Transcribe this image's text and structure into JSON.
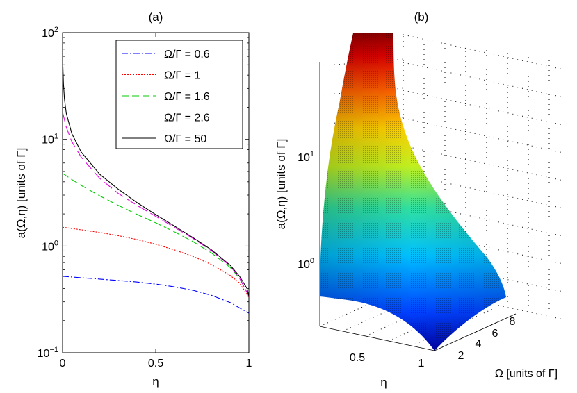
{
  "chart_data": [
    {
      "type": "line",
      "title": "(a)",
      "xlabel": "η",
      "ylabel": "a(Ω,η) [units of Γ]",
      "xlim": [
        0,
        1
      ],
      "ylim": [
        0.1,
        100
      ],
      "yscale": "log",
      "xticks": [
        0,
        0.5,
        1
      ],
      "xtick_labels": [
        "0",
        "0.5",
        "1"
      ],
      "yticks": [
        0.1,
        1,
        10,
        100
      ],
      "ytick_labels": [
        {
          "base": "10",
          "exp": "−1"
        },
        {
          "base": "10",
          "exp": "0"
        },
        {
          "base": "10",
          "exp": "1"
        },
        {
          "base": "10",
          "exp": "2"
        }
      ],
      "legend_position": "top-right",
      "series": [
        {
          "name": "Ω/Γ = 0.6",
          "color": "#0000ff",
          "dash": "dash-dot",
          "x": [
            0,
            0.1,
            0.2,
            0.3,
            0.4,
            0.5,
            0.6,
            0.7,
            0.8,
            0.9,
            1.0
          ],
          "y": [
            0.52,
            0.505,
            0.49,
            0.475,
            0.46,
            0.44,
            0.415,
            0.385,
            0.345,
            0.295,
            0.235
          ]
        },
        {
          "name": "Ω/Γ = 1",
          "color": "#ff0000",
          "dash": "dotted",
          "x": [
            0,
            0.1,
            0.2,
            0.3,
            0.4,
            0.5,
            0.6,
            0.7,
            0.8,
            0.9,
            0.95,
            1.0
          ],
          "y": [
            1.5,
            1.42,
            1.34,
            1.25,
            1.15,
            1.04,
            0.92,
            0.8,
            0.67,
            0.53,
            0.45,
            0.33
          ]
        },
        {
          "name": "Ω/Γ = 1.6",
          "color": "#00cc00",
          "dash": "dashed",
          "x": [
            0,
            0.05,
            0.1,
            0.2,
            0.3,
            0.4,
            0.5,
            0.6,
            0.7,
            0.8,
            0.9,
            0.95,
            1.0
          ],
          "y": [
            4.8,
            4.2,
            3.7,
            2.95,
            2.4,
            1.98,
            1.65,
            1.36,
            1.1,
            0.86,
            0.63,
            0.5,
            0.34
          ]
        },
        {
          "name": "Ω/Γ = 2.6",
          "color": "#e000e0",
          "dash": "long-dashed",
          "x": [
            0,
            0.02,
            0.05,
            0.1,
            0.2,
            0.3,
            0.4,
            0.5,
            0.6,
            0.7,
            0.8,
            0.9,
            0.95,
            1.0
          ],
          "y": [
            18,
            13,
            9.5,
            6.8,
            4.3,
            3.1,
            2.4,
            1.9,
            1.5,
            1.18,
            0.9,
            0.65,
            0.5,
            0.34
          ]
        },
        {
          "name": "Ω/Γ = 50",
          "color": "#000000",
          "dash": "solid",
          "x": [
            0,
            0.005,
            0.01,
            0.02,
            0.05,
            0.1,
            0.2,
            0.3,
            0.4,
            0.5,
            0.6,
            0.7,
            0.8,
            0.9,
            0.95,
            0.99,
            1.0
          ],
          "y": [
            60,
            33,
            24,
            17.5,
            11.3,
            7.6,
            4.7,
            3.4,
            2.55,
            1.97,
            1.54,
            1.2,
            0.92,
            0.66,
            0.52,
            0.4,
            0.34
          ]
        }
      ]
    },
    {
      "type": "surface3d",
      "title": "(b)",
      "xlabel": "η",
      "ylabel": "Ω [units of Γ]",
      "zlabel": "a(Ω,η) [units of Γ]",
      "zscale": "log",
      "xticks": [
        0.5,
        1
      ],
      "xtick_labels": [
        "0.5",
        "1"
      ],
      "yticks": [
        2,
        4,
        6,
        8
      ],
      "ytick_labels": [
        "2",
        "4",
        "6",
        "8"
      ],
      "zticks": [
        1,
        10
      ],
      "ztick_labels": [
        {
          "base": "10",
          "exp": "0"
        },
        {
          "base": "10",
          "exp": "1"
        }
      ],
      "colormap": "jet"
    }
  ]
}
